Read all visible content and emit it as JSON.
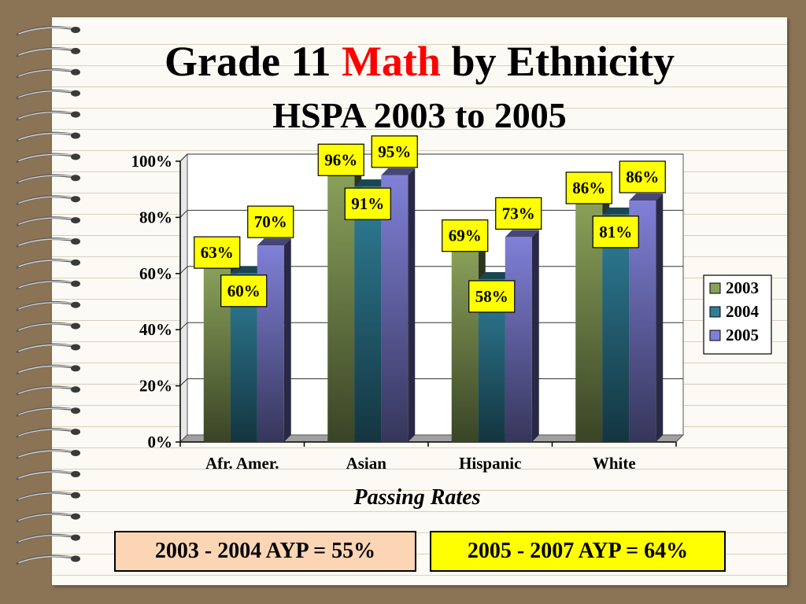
{
  "title": {
    "prefix": "Grade 11",
    "accent": "Math",
    "suffix": "by Ethnicity",
    "accent_color": "#ff0000"
  },
  "subtitle": "HSPA 2003 to 2005",
  "caption": "Passing Rates",
  "ayp_boxes": [
    {
      "text": "2003 - 2004 AYP = 55%",
      "color": "#fcd5b5"
    },
    {
      "text": "2005 - 2007 AYP = 64%",
      "color": "#ffff00"
    }
  ],
  "chart_data": {
    "type": "bar",
    "categories": [
      "Afr. Amer.",
      "Asian",
      "Hispanic",
      "White"
    ],
    "series": [
      {
        "name": "2003",
        "values": [
          63,
          96,
          69,
          86
        ],
        "labels": [
          "63%",
          "96%",
          "69%",
          "86%"
        ],
        "color": "#8aa15a"
      },
      {
        "name": "2004",
        "values": [
          60,
          91,
          58,
          81
        ],
        "labels": [
          "60%",
          "91%",
          "58%",
          "81%"
        ],
        "color": "#2f7f98"
      },
      {
        "name": "2005",
        "values": [
          70,
          95,
          73,
          86
        ],
        "labels": [
          "70%",
          "95%",
          "73%",
          "86%"
        ],
        "color": "#8080d8"
      }
    ],
    "y_ticks": [
      "0%",
      "20%",
      "40%",
      "60%",
      "80%",
      "100%"
    ],
    "ylim": [
      0,
      100
    ],
    "legend_position": "right",
    "label_box_color": "#ffff00",
    "grid": true
  }
}
